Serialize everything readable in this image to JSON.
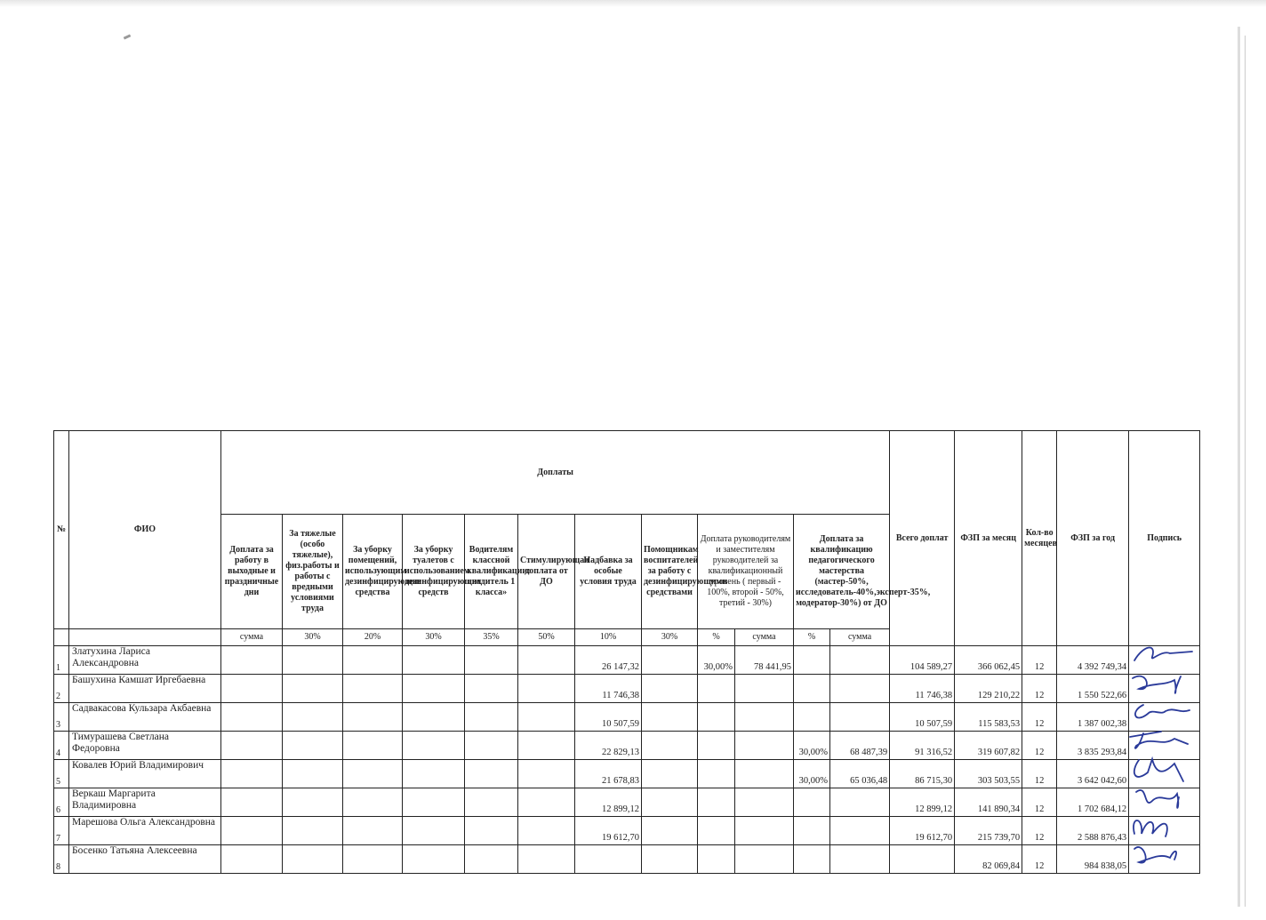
{
  "table": {
    "header": {
      "num": "№",
      "fio": "ФИО",
      "group": "Доплаты",
      "columns": [
        "Доплата за работу в выходные и праздничные дни",
        "За тяжелые (особо тяжелые), физ.работы и работы с вредными условиями труда",
        "За уборку помещений, использующим дезинфицирующие средства",
        "За уборку туалетов с использованием дезинфицирующих средств",
        "Водителям классной квалификации: «водитель 1 класса»",
        "Стимулирующая доплата от ДО",
        "Надбавка за особые условия труда",
        "Помощникам воспитателей за работу с дезинфицирующими средствами",
        "Доплата руководителям и заместителям руководителей за квалификационный уровень ( первый - 100%, второй - 50%, третий - 30%)",
        "Доплата за квалификацию педагогического мастерства (мастер-50%, исследователь-40%,эксперт-35%, модератор-30%) от ДО"
      ],
      "total": "Всего доплат",
      "fzp_month": "ФЗП за месяц",
      "months": "Кол-во месяцев",
      "fzp_year": "ФЗП за год",
      "signature": "Подпись",
      "units": [
        "сумма",
        "30%",
        "20%",
        "30%",
        "35%",
        "50%",
        "10%",
        "30%",
        "%",
        "сумма",
        "%",
        "сумма"
      ]
    },
    "rows": [
      {
        "n": "1",
        "fio": "Златухина Лариса Александровна",
        "nadbavka": "26 147,32",
        "ruk_pct": "30,00%",
        "ruk_sum": "78 441,95",
        "ped_pct": "",
        "ped_sum": "",
        "total": "104 589,27",
        "month": "366 062,45",
        "months": "12",
        "year": "4 392 749,34"
      },
      {
        "n": "2",
        "fio": "Башухина Камшат Иргебаевна",
        "nadbavka": "11 746,38",
        "ruk_pct": "",
        "ruk_sum": "",
        "ped_pct": "",
        "ped_sum": "",
        "total": "11 746,38",
        "month": "129 210,22",
        "months": "12",
        "year": "1 550 522,66"
      },
      {
        "n": "3",
        "fio": "Садвакасова Кульзара Акбаевна",
        "nadbavka": "10 507,59",
        "ruk_pct": "",
        "ruk_sum": "",
        "ped_pct": "",
        "ped_sum": "",
        "total": "10 507,59",
        "month": "115 583,53",
        "months": "12",
        "year": "1 387 002,38"
      },
      {
        "n": "4",
        "fio": "Тимурашева Светлана Федоровна",
        "nadbavka": "22 829,13",
        "ruk_pct": "",
        "ruk_sum": "",
        "ped_pct": "30,00%",
        "ped_sum": "68 487,39",
        "total": "91 316,52",
        "month": "319 607,82",
        "months": "12",
        "year": "3 835 293,84"
      },
      {
        "n": "5",
        "fio": "Ковалев Юрий Владимирович",
        "nadbavka": "21 678,83",
        "ruk_pct": "",
        "ruk_sum": "",
        "ped_pct": "30,00%",
        "ped_sum": "65 036,48",
        "total": "86 715,30",
        "month": "303 503,55",
        "months": "12",
        "year": "3 642 042,60"
      },
      {
        "n": "6",
        "fio": "Веркаш Маргарита Владимировна",
        "nadbavka": "12 899,12",
        "ruk_pct": "",
        "ruk_sum": "",
        "ped_pct": "",
        "ped_sum": "",
        "total": "12 899,12",
        "month": "141 890,34",
        "months": "12",
        "year": "1 702 684,12"
      },
      {
        "n": "7",
        "fio": "Марешова Ольга Александровна",
        "nadbavka": "19 612,70",
        "ruk_pct": "",
        "ruk_sum": "",
        "ped_pct": "",
        "ped_sum": "",
        "total": "19 612,70",
        "month": "215 739,70",
        "months": "12",
        "year": "2 588 876,43"
      },
      {
        "n": "8",
        "fio": "Босенко Татьяна Алексеевна",
        "nadbavka": "",
        "ruk_pct": "",
        "ruk_sum": "",
        "ped_pct": "",
        "ped_sum": "",
        "total": "",
        "month": "82 069,84",
        "months": "12",
        "year": "984 838,05"
      }
    ],
    "signature_color": "#2a3a9a"
  }
}
